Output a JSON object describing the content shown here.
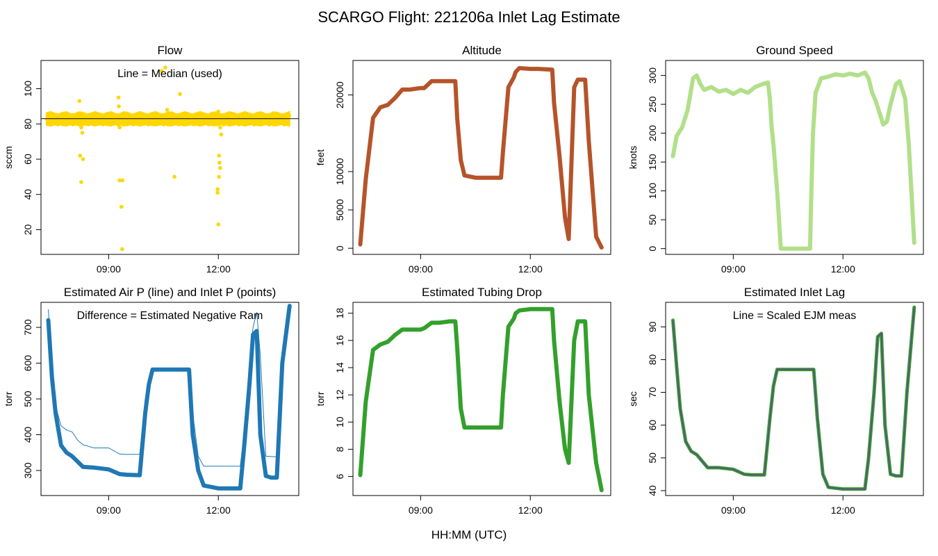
{
  "figure": {
    "title": "SCARGO Flight: 221206a  Inlet Lag Estimate",
    "xlabel_common": "HH:MM (UTC)"
  },
  "chart_data": [
    {
      "id": "flow",
      "type": "scatter",
      "title": "Flow",
      "ylabel": "sccm",
      "annotation": "Line = Median (used)",
      "color": "#FFD700",
      "line_color": "#000000",
      "xlim": [
        7.15,
        14.2
      ],
      "ylim": [
        6,
        116
      ],
      "yticks": [
        20,
        40,
        60,
        80,
        100
      ],
      "xticks": [
        {
          "value": 9,
          "label": "09:00"
        },
        {
          "value": 12,
          "label": "12:00"
        }
      ],
      "median_line": 83,
      "band": {
        "low": 79.5,
        "high": 86
      },
      "outliers": [
        [
          8.2,
          93
        ],
        [
          8.22,
          62
        ],
        [
          8.25,
          47
        ],
        [
          8.3,
          60
        ],
        [
          8.25,
          78
        ],
        [
          8.28,
          75
        ],
        [
          9.27,
          95
        ],
        [
          9.28,
          90
        ],
        [
          9.3,
          48
        ],
        [
          9.38,
          48
        ],
        [
          9.35,
          33
        ],
        [
          9.37,
          9
        ],
        [
          9.3,
          78
        ],
        [
          10.45,
          110
        ],
        [
          10.55,
          112
        ],
        [
          10.6,
          88
        ],
        [
          10.8,
          50
        ],
        [
          10.95,
          97
        ],
        [
          12.0,
          87
        ],
        [
          12.02,
          62
        ],
        [
          12.03,
          58
        ],
        [
          12.05,
          55
        ],
        [
          12.02,
          50
        ],
        [
          11.98,
          43
        ],
        [
          11.98,
          41
        ],
        [
          12.0,
          23
        ],
        [
          12.05,
          78
        ],
        [
          12.08,
          74
        ]
      ]
    },
    {
      "id": "altitude",
      "type": "line",
      "title": "Altitude",
      "ylabel": "feet",
      "color": "#B5542A",
      "xlim": [
        7.15,
        14.2
      ],
      "ylim": [
        -800,
        24500
      ],
      "yticks": [
        0,
        5000,
        10000,
        20000
      ],
      "xticks": [
        {
          "value": 9,
          "label": "09:00"
        },
        {
          "value": 12,
          "label": "12:00"
        }
      ],
      "x": [
        7.35,
        7.5,
        7.7,
        7.9,
        8.1,
        8.3,
        8.5,
        8.7,
        9.0,
        9.1,
        9.3,
        9.5,
        9.8,
        9.95,
        10.0,
        10.1,
        10.2,
        10.5,
        10.8,
        11.2,
        11.25,
        11.4,
        11.55,
        11.6,
        11.7,
        12.0,
        12.2,
        12.6,
        12.65,
        12.8,
        12.95,
        13.05,
        13.2,
        13.3,
        13.5,
        13.6,
        13.8,
        13.95
      ],
      "y": [
        500,
        9000,
        17000,
        18400,
        18700,
        19600,
        20700,
        20700,
        20900,
        20900,
        21800,
        21800,
        21800,
        21800,
        17000,
        11500,
        9500,
        9200,
        9200,
        9200,
        12500,
        21000,
        22300,
        23000,
        23500,
        23400,
        23400,
        23300,
        19000,
        12000,
        4000,
        1200,
        21000,
        22000,
        22000,
        14000,
        1500,
        100
      ]
    },
    {
      "id": "ground_speed",
      "type": "line",
      "title": "Ground Speed",
      "ylabel": "knots",
      "color": "#B2DF8A",
      "xlim": [
        7.15,
        14.2
      ],
      "ylim": [
        -10,
        326
      ],
      "yticks": [
        0,
        50,
        100,
        150,
        200,
        250,
        300
      ],
      "xticks": [
        {
          "value": 9,
          "label": "09:00"
        },
        {
          "value": 12,
          "label": "12:00"
        }
      ],
      "x": [
        7.35,
        7.45,
        7.6,
        7.75,
        7.9,
        8.0,
        8.1,
        8.2,
        8.4,
        8.6,
        8.8,
        9.0,
        9.2,
        9.4,
        9.6,
        9.8,
        9.95,
        10.0,
        10.05,
        10.1,
        10.2,
        10.3,
        10.6,
        11.0,
        11.1,
        11.12,
        11.18,
        11.25,
        11.4,
        11.6,
        11.8,
        12.0,
        12.2,
        12.4,
        12.6,
        12.7,
        12.8,
        12.9,
        13.0,
        13.1,
        13.2,
        13.3,
        13.45,
        13.55,
        13.7,
        13.8,
        13.95
      ],
      "y": [
        160,
        195,
        210,
        240,
        295,
        300,
        285,
        275,
        280,
        272,
        275,
        268,
        275,
        270,
        280,
        285,
        288,
        260,
        210,
        180,
        100,
        0,
        0,
        0,
        0,
        60,
        200,
        270,
        295,
        298,
        302,
        300,
        303,
        300,
        305,
        295,
        270,
        255,
        235,
        215,
        220,
        250,
        285,
        290,
        260,
        180,
        10
      ]
    },
    {
      "id": "air_inlet_pressure",
      "type": "line",
      "title": "Estimated Air P (line) and Inlet P (points)",
      "ylabel": "torr",
      "annotation": "Difference = Estimated Negative Ram",
      "color": "#1F78B4",
      "xlim": [
        7.15,
        14.2
      ],
      "ylim": [
        230,
        770
      ],
      "yticks": [
        300,
        400,
        500,
        600,
        700
      ],
      "xticks": [
        {
          "value": 9,
          "label": "09:00"
        },
        {
          "value": 12,
          "label": "12:00"
        }
      ],
      "series": [
        {
          "name": "Estimated Air P",
          "x": [
            7.35,
            7.45,
            7.55,
            7.7,
            7.85,
            8.0,
            8.15,
            8.3,
            8.6,
            9.0,
            9.3,
            9.5,
            9.85,
            10.0,
            10.1,
            10.2,
            11.2,
            11.3,
            11.45,
            11.6,
            12.0,
            12.6,
            12.7,
            12.85,
            12.95,
            13.05,
            13.15,
            13.3,
            13.6
          ],
          "y": [
            750,
            600,
            480,
            425,
            413,
            408,
            385,
            372,
            363,
            363,
            346,
            345,
            345,
            500,
            560,
            580,
            582,
            460,
            340,
            312,
            312,
            312,
            400,
            600,
            700,
            742,
            620,
            340,
            338
          ]
        },
        {
          "name": "Inlet P",
          "x": [
            7.35,
            7.45,
            7.55,
            7.7,
            7.85,
            8.0,
            8.15,
            8.3,
            8.6,
            9.0,
            9.3,
            9.5,
            9.85,
            10.0,
            10.1,
            10.2,
            11.2,
            11.3,
            11.45,
            11.6,
            12.0,
            12.6,
            12.7,
            12.85,
            12.95,
            13.05,
            13.15,
            13.3,
            13.45,
            13.6,
            13.75,
            13.95
          ],
          "y": [
            720,
            560,
            460,
            370,
            350,
            340,
            325,
            310,
            308,
            303,
            290,
            288,
            287,
            460,
            540,
            582,
            582,
            400,
            300,
            258,
            250,
            250,
            360,
            540,
            680,
            690,
            400,
            285,
            280,
            280,
            600,
            760
          ]
        }
      ]
    },
    {
      "id": "tubing_drop",
      "type": "line",
      "title": "Estimated Tubing Drop",
      "ylabel": "torr",
      "color": "#33A02C",
      "xlim": [
        7.15,
        14.2
      ],
      "ylim": [
        4.6,
        18.8
      ],
      "yticks": [
        6,
        8,
        10,
        12,
        14,
        16,
        18
      ],
      "xticks": [
        {
          "value": 9,
          "label": "09:00"
        },
        {
          "value": 12,
          "label": "12:00"
        }
      ],
      "x": [
        7.35,
        7.5,
        7.7,
        7.9,
        8.1,
        8.3,
        8.5,
        8.7,
        9.0,
        9.1,
        9.3,
        9.5,
        9.8,
        9.95,
        10.0,
        10.1,
        10.2,
        10.5,
        10.8,
        11.2,
        11.25,
        11.4,
        11.55,
        11.6,
        11.7,
        12.0,
        12.2,
        12.6,
        12.65,
        12.8,
        12.95,
        13.05,
        13.2,
        13.3,
        13.5,
        13.6,
        13.8,
        13.95
      ],
      "y": [
        6.1,
        11.5,
        15.3,
        15.7,
        15.9,
        16.4,
        16.8,
        16.8,
        16.8,
        16.9,
        17.3,
        17.3,
        17.4,
        17.4,
        15.5,
        11.0,
        9.6,
        9.6,
        9.6,
        9.6,
        12.0,
        17.0,
        17.6,
        18.0,
        18.2,
        18.3,
        18.3,
        18.3,
        16.0,
        11.5,
        8.0,
        7.0,
        16.0,
        17.4,
        17.4,
        12.0,
        7.0,
        5.0
      ]
    },
    {
      "id": "inlet_lag",
      "type": "line",
      "title": "Estimated Inlet Lag",
      "ylabel": "sec",
      "annotation": "Line = Scaled EJM meas",
      "color": "#6A3D9A",
      "points_color": "#33A02C",
      "xlim": [
        7.15,
        14.2
      ],
      "ylim": [
        38.5,
        97.5
      ],
      "yticks": [
        40,
        50,
        60,
        70,
        80,
        90
      ],
      "xticks": [
        {
          "value": 9,
          "label": "09:00"
        },
        {
          "value": 12,
          "label": "12:00"
        }
      ],
      "x": [
        7.35,
        7.45,
        7.55,
        7.7,
        7.85,
        8.0,
        8.15,
        8.3,
        8.6,
        9.0,
        9.3,
        9.5,
        9.85,
        10.0,
        10.1,
        10.2,
        11.2,
        11.3,
        11.45,
        11.6,
        12.0,
        12.6,
        12.7,
        12.85,
        12.95,
        13.05,
        13.15,
        13.3,
        13.45,
        13.6,
        13.75,
        13.95
      ],
      "y": [
        92,
        78,
        65,
        55,
        52,
        51,
        49,
        47,
        47,
        46.5,
        45,
        44.8,
        44.8,
        62,
        72,
        77,
        77,
        62,
        45,
        41,
        40.5,
        40.5,
        50,
        70,
        87,
        88,
        60,
        45,
        44.5,
        44.5,
        70,
        96
      ]
    }
  ]
}
